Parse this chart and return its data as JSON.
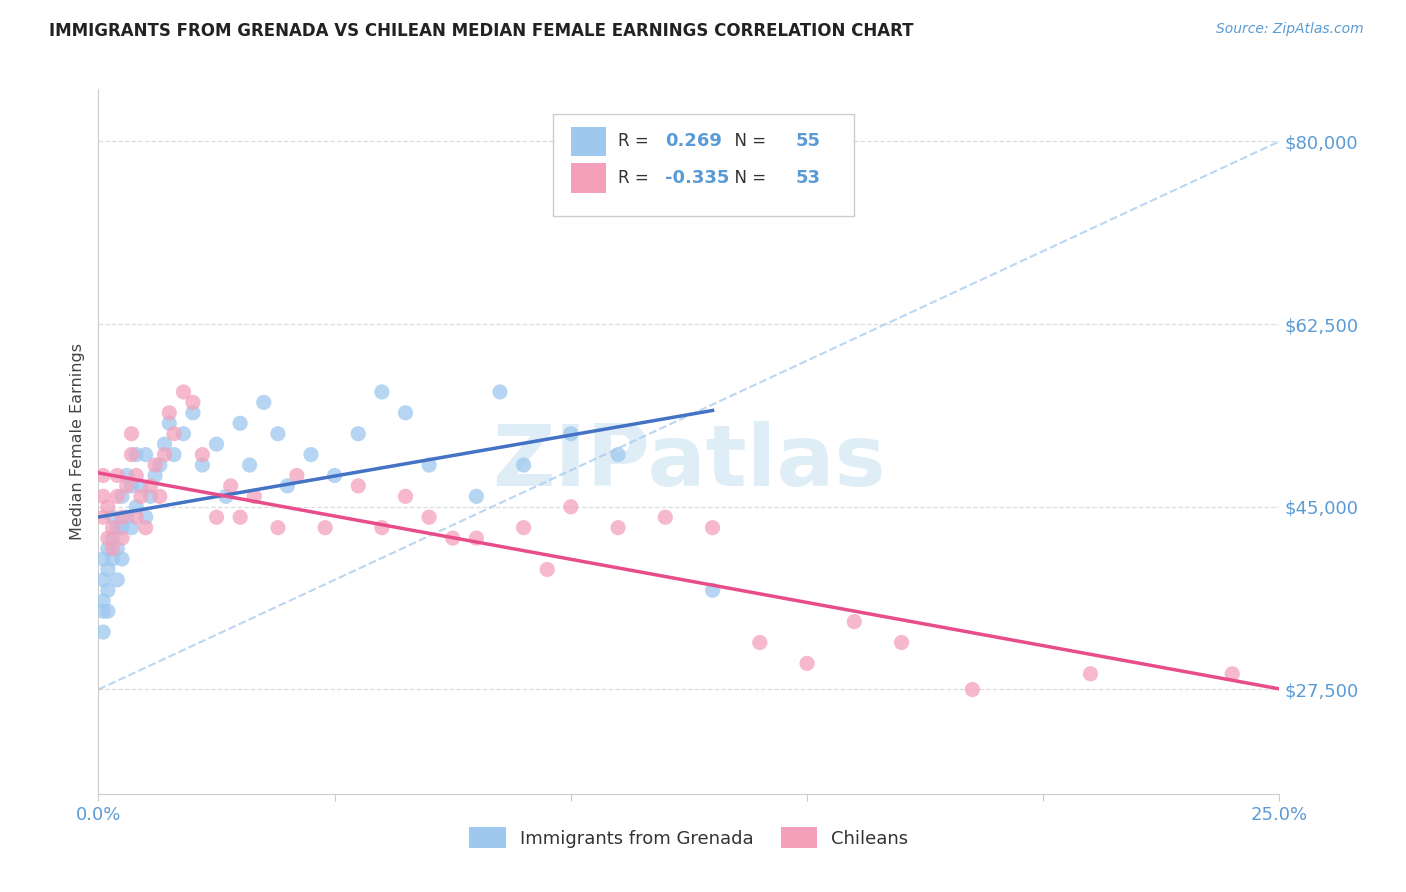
{
  "title": "IMMIGRANTS FROM GRENADA VS CHILEAN MEDIAN FEMALE EARNINGS CORRELATION CHART",
  "source": "Source: ZipAtlas.com",
  "ylabel": "Median Female Earnings",
  "xlim": [
    0.0,
    0.25
  ],
  "ylim": [
    17500,
    85000
  ],
  "yticks": [
    27500,
    45000,
    62500,
    80000
  ],
  "ytick_labels": [
    "$27,500",
    "$45,000",
    "$62,500",
    "$80,000"
  ],
  "xticks": [
    0.0,
    0.05,
    0.1,
    0.15,
    0.2,
    0.25
  ],
  "xtick_labels": [
    "0.0%",
    "",
    "",
    "",
    "",
    "25.0%"
  ],
  "legend_label1": "Immigrants from Grenada",
  "legend_label2": "Chileans",
  "R1": 0.269,
  "N1": 55,
  "R2": -0.335,
  "N2": 53,
  "color_blue": "#9EC8EE",
  "color_pink": "#F4A0BB",
  "color_blue_line": "#4472C4",
  "color_pink_line": "#E84C8B",
  "color_blue_text": "#5B9BD5",
  "watermark_color": "#C5DFF2",
  "background_color": "#FFFFFF",
  "grid_color": "#DDDDDD",
  "blue_scatter_x": [
    0.001,
    0.001,
    0.001,
    0.001,
    0.001,
    0.002,
    0.002,
    0.002,
    0.002,
    0.003,
    0.003,
    0.003,
    0.004,
    0.004,
    0.004,
    0.005,
    0.005,
    0.005,
    0.006,
    0.006,
    0.007,
    0.007,
    0.008,
    0.008,
    0.009,
    0.01,
    0.01,
    0.011,
    0.012,
    0.013,
    0.014,
    0.015,
    0.016,
    0.018,
    0.02,
    0.022,
    0.025,
    0.027,
    0.03,
    0.032,
    0.035,
    0.038,
    0.04,
    0.045,
    0.05,
    0.055,
    0.06,
    0.065,
    0.07,
    0.08,
    0.085,
    0.09,
    0.1,
    0.11,
    0.13
  ],
  "blue_scatter_y": [
    33000,
    35000,
    36000,
    38000,
    40000,
    35000,
    37000,
    39000,
    41000,
    40000,
    42000,
    44000,
    38000,
    41000,
    43000,
    40000,
    43000,
    46000,
    44000,
    48000,
    43000,
    47000,
    45000,
    50000,
    47000,
    44000,
    50000,
    46000,
    48000,
    49000,
    51000,
    53000,
    50000,
    52000,
    54000,
    49000,
    51000,
    46000,
    53000,
    49000,
    55000,
    52000,
    47000,
    50000,
    48000,
    52000,
    56000,
    54000,
    49000,
    46000,
    56000,
    49000,
    52000,
    50000,
    37000
  ],
  "pink_scatter_x": [
    0.001,
    0.001,
    0.001,
    0.002,
    0.002,
    0.003,
    0.003,
    0.004,
    0.004,
    0.005,
    0.005,
    0.006,
    0.007,
    0.007,
    0.008,
    0.008,
    0.009,
    0.01,
    0.011,
    0.012,
    0.013,
    0.014,
    0.015,
    0.016,
    0.018,
    0.02,
    0.022,
    0.025,
    0.028,
    0.03,
    0.033,
    0.038,
    0.042,
    0.048,
    0.055,
    0.06,
    0.065,
    0.07,
    0.075,
    0.08,
    0.09,
    0.095,
    0.1,
    0.11,
    0.12,
    0.13,
    0.14,
    0.15,
    0.16,
    0.17,
    0.185,
    0.21,
    0.24
  ],
  "pink_scatter_y": [
    44000,
    46000,
    48000,
    42000,
    45000,
    41000,
    43000,
    46000,
    48000,
    42000,
    44000,
    47000,
    50000,
    52000,
    44000,
    48000,
    46000,
    43000,
    47000,
    49000,
    46000,
    50000,
    54000,
    52000,
    56000,
    55000,
    50000,
    44000,
    47000,
    44000,
    46000,
    43000,
    48000,
    43000,
    47000,
    43000,
    46000,
    44000,
    42000,
    42000,
    43000,
    39000,
    45000,
    43000,
    44000,
    43000,
    32000,
    30000,
    34000,
    32000,
    27500,
    29000,
    29000
  ],
  "dashed_line_x": [
    0.0,
    0.25
  ],
  "dashed_line_y": [
    27500,
    80000
  ],
  "blue_line_x": [
    0.0,
    0.13
  ],
  "pink_line_x": [
    0.0,
    0.25
  ]
}
